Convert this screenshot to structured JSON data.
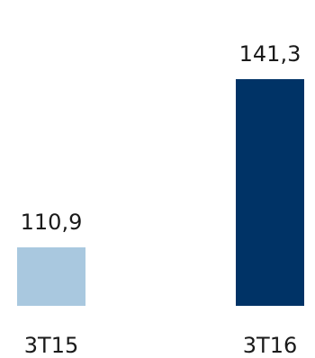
{
  "chart_data": {
    "type": "bar",
    "title": "",
    "categories": [
      "3T15",
      "3T16"
    ],
    "values": [
      110.9,
      141.3
    ],
    "value_labels": [
      "110,9",
      "141,3"
    ],
    "colors": [
      "#a9c8df",
      "#003366"
    ],
    "xlabel": "",
    "ylabel": "",
    "grid": false
  }
}
